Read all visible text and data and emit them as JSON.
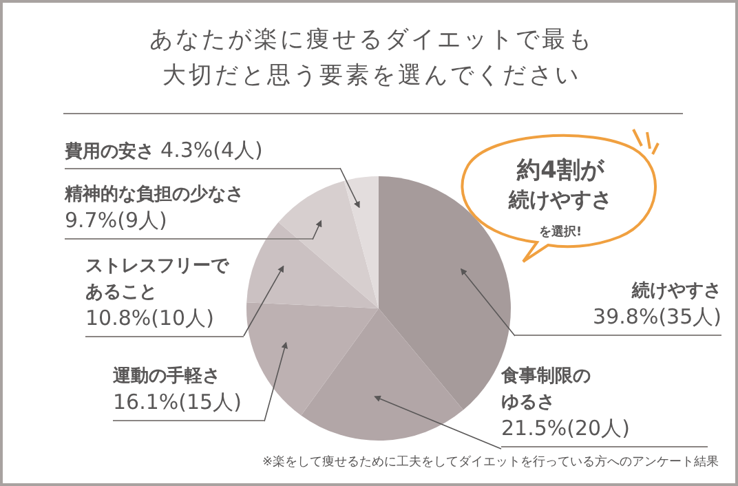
{
  "chart_data": {
    "type": "pie",
    "title": "あなたが楽に痩せるダイエットで最も大切だと思う要素を選んでください",
    "categories": [
      "続けやすさ",
      "食事制限のゆるさ",
      "運動の手軽さ",
      "ストレスフリーであること",
      "精神的な負担の少なさ",
      "費用の安さ"
    ],
    "values": [
      39.8,
      21.5,
      16.1,
      10.8,
      9.7,
      4.3
    ],
    "value_labels": [
      "39.8%(35人)",
      "21.5%(20人)",
      "16.1%(15人)",
      "10.8%(10人)",
      "9.7%(9人)",
      "4.3%(4人)"
    ],
    "colors": [
      "#a69b9b",
      "#b2a6a7",
      "#bdb1b2",
      "#cbc1c2",
      "#d7cfcf",
      "#e3dddd"
    ],
    "annotations": [
      "約4割が",
      "続けやすさ",
      "を選択!",
      "※楽をして痩せるために工夫をしてダイエットを行っている方へのアンケート結果"
    ]
  }
}
